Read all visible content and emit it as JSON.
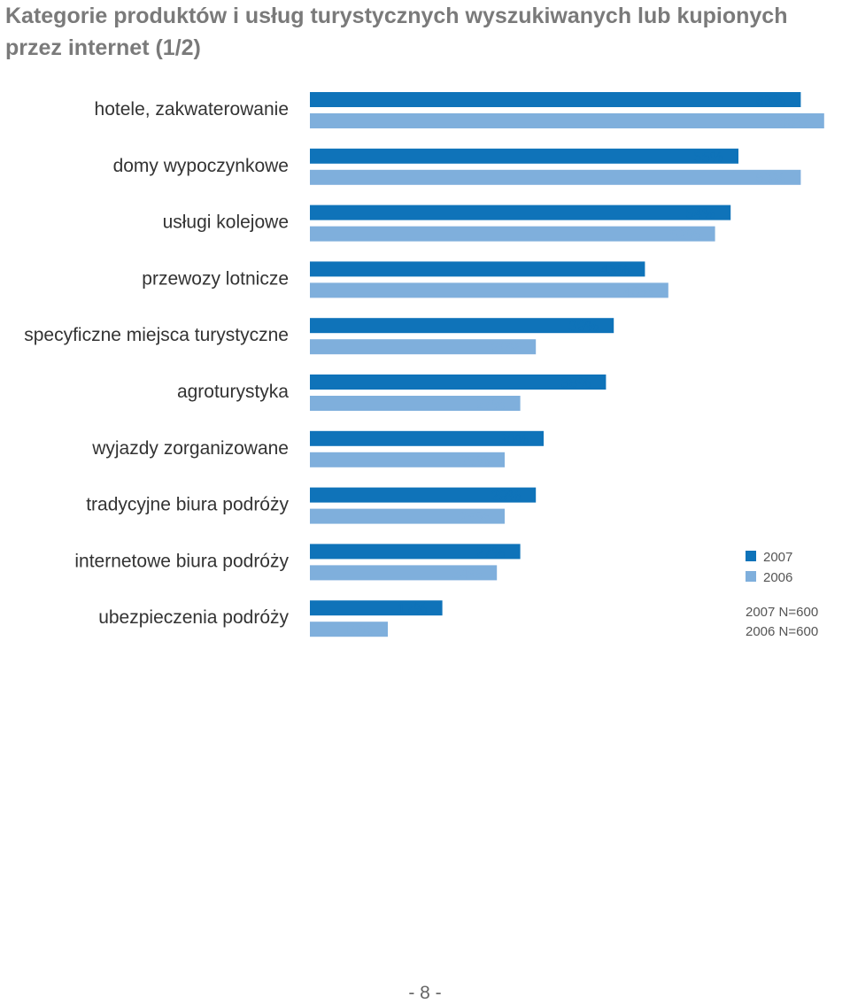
{
  "chart_data": {
    "type": "bar",
    "orientation": "horizontal",
    "title": "Kategorie produktów i usług turystycznych wyszukiwanych lub kupionych przez internet (1/2)",
    "categories": [
      "hotele, zakwaterowanie",
      "domy wypoczynkowe",
      "usługi kolejowe",
      "przewozy lotnicze",
      "specyficzne miejsca turystyczne",
      "agroturystyka",
      "wyjazdy zorganizowane",
      "tradycyjne biura podróży",
      "internetowe biura podróży",
      "ubezpieczenia podróży"
    ],
    "series": [
      {
        "name": "2007",
        "color": "#0f73b9",
        "values": [
          63,
          55,
          54,
          43,
          39,
          38,
          30,
          29,
          27,
          17
        ]
      },
      {
        "name": "2006",
        "color": "#7fafdc",
        "values": [
          66,
          63,
          52,
          46,
          29,
          27,
          25,
          25,
          24,
          10
        ]
      }
    ],
    "value_suffix": "%",
    "xlim": [
      0,
      70
    ],
    "grid": false,
    "legend_position": "right",
    "notes": [
      "2007 N=600",
      "2006 N=600"
    ]
  },
  "page_number": "- 8 -"
}
